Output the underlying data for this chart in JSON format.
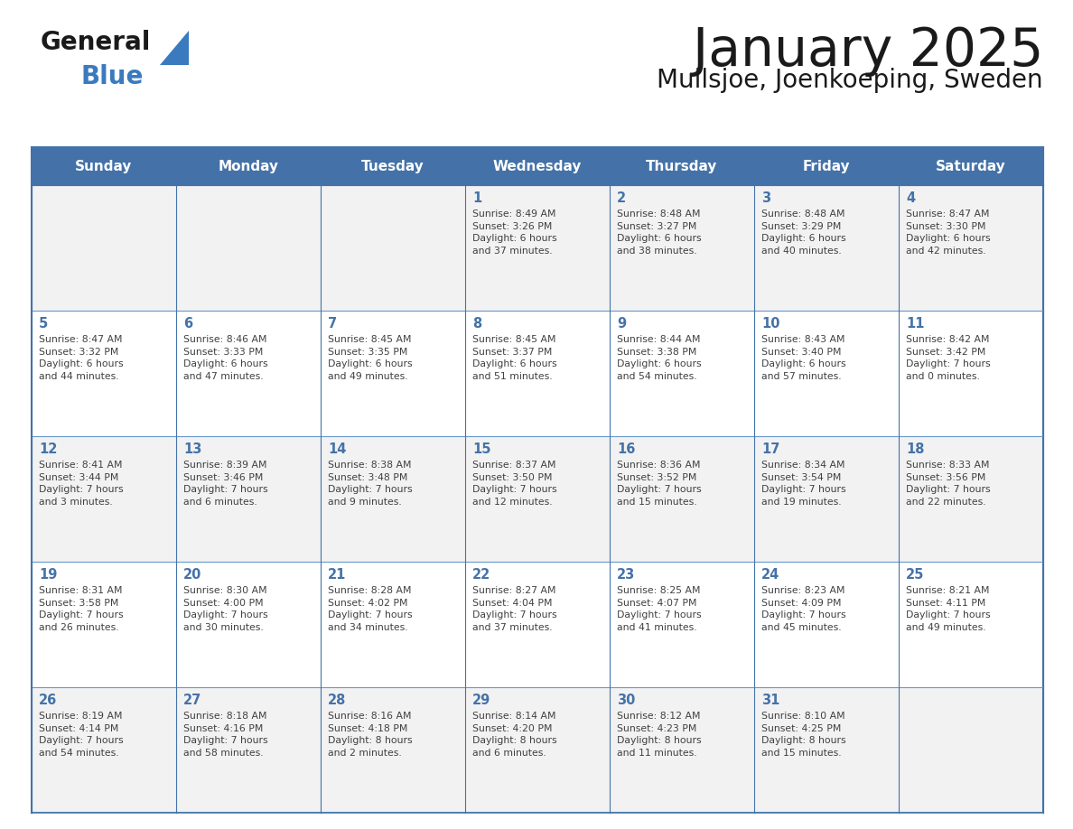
{
  "title": "January 2025",
  "subtitle": "Mullsjoe, Joenkoeping, Sweden",
  "days_of_week": [
    "Sunday",
    "Monday",
    "Tuesday",
    "Wednesday",
    "Thursday",
    "Friday",
    "Saturday"
  ],
  "header_bg": "#4472a8",
  "header_text": "#ffffff",
  "cell_bg_white": "#ffffff",
  "cell_bg_gray": "#f2f2f2",
  "border_color": "#4472a8",
  "row_line_color": "#6699cc",
  "day_number_color": "#4472a8",
  "cell_text_color": "#404040",
  "title_color": "#1a1a1a",
  "subtitle_color": "#1a1a1a",
  "logo_general_color": "#1a1a1a",
  "logo_blue_color": "#3a7bbf",
  "weeks": [
    [
      {
        "day": null,
        "info": ""
      },
      {
        "day": null,
        "info": ""
      },
      {
        "day": null,
        "info": ""
      },
      {
        "day": 1,
        "info": "Sunrise: 8:49 AM\nSunset: 3:26 PM\nDaylight: 6 hours\nand 37 minutes."
      },
      {
        "day": 2,
        "info": "Sunrise: 8:48 AM\nSunset: 3:27 PM\nDaylight: 6 hours\nand 38 minutes."
      },
      {
        "day": 3,
        "info": "Sunrise: 8:48 AM\nSunset: 3:29 PM\nDaylight: 6 hours\nand 40 minutes."
      },
      {
        "day": 4,
        "info": "Sunrise: 8:47 AM\nSunset: 3:30 PM\nDaylight: 6 hours\nand 42 minutes."
      }
    ],
    [
      {
        "day": 5,
        "info": "Sunrise: 8:47 AM\nSunset: 3:32 PM\nDaylight: 6 hours\nand 44 minutes."
      },
      {
        "day": 6,
        "info": "Sunrise: 8:46 AM\nSunset: 3:33 PM\nDaylight: 6 hours\nand 47 minutes."
      },
      {
        "day": 7,
        "info": "Sunrise: 8:45 AM\nSunset: 3:35 PM\nDaylight: 6 hours\nand 49 minutes."
      },
      {
        "day": 8,
        "info": "Sunrise: 8:45 AM\nSunset: 3:37 PM\nDaylight: 6 hours\nand 51 minutes."
      },
      {
        "day": 9,
        "info": "Sunrise: 8:44 AM\nSunset: 3:38 PM\nDaylight: 6 hours\nand 54 minutes."
      },
      {
        "day": 10,
        "info": "Sunrise: 8:43 AM\nSunset: 3:40 PM\nDaylight: 6 hours\nand 57 minutes."
      },
      {
        "day": 11,
        "info": "Sunrise: 8:42 AM\nSunset: 3:42 PM\nDaylight: 7 hours\nand 0 minutes."
      }
    ],
    [
      {
        "day": 12,
        "info": "Sunrise: 8:41 AM\nSunset: 3:44 PM\nDaylight: 7 hours\nand 3 minutes."
      },
      {
        "day": 13,
        "info": "Sunrise: 8:39 AM\nSunset: 3:46 PM\nDaylight: 7 hours\nand 6 minutes."
      },
      {
        "day": 14,
        "info": "Sunrise: 8:38 AM\nSunset: 3:48 PM\nDaylight: 7 hours\nand 9 minutes."
      },
      {
        "day": 15,
        "info": "Sunrise: 8:37 AM\nSunset: 3:50 PM\nDaylight: 7 hours\nand 12 minutes."
      },
      {
        "day": 16,
        "info": "Sunrise: 8:36 AM\nSunset: 3:52 PM\nDaylight: 7 hours\nand 15 minutes."
      },
      {
        "day": 17,
        "info": "Sunrise: 8:34 AM\nSunset: 3:54 PM\nDaylight: 7 hours\nand 19 minutes."
      },
      {
        "day": 18,
        "info": "Sunrise: 8:33 AM\nSunset: 3:56 PM\nDaylight: 7 hours\nand 22 minutes."
      }
    ],
    [
      {
        "day": 19,
        "info": "Sunrise: 8:31 AM\nSunset: 3:58 PM\nDaylight: 7 hours\nand 26 minutes."
      },
      {
        "day": 20,
        "info": "Sunrise: 8:30 AM\nSunset: 4:00 PM\nDaylight: 7 hours\nand 30 minutes."
      },
      {
        "day": 21,
        "info": "Sunrise: 8:28 AM\nSunset: 4:02 PM\nDaylight: 7 hours\nand 34 minutes."
      },
      {
        "day": 22,
        "info": "Sunrise: 8:27 AM\nSunset: 4:04 PM\nDaylight: 7 hours\nand 37 minutes."
      },
      {
        "day": 23,
        "info": "Sunrise: 8:25 AM\nSunset: 4:07 PM\nDaylight: 7 hours\nand 41 minutes."
      },
      {
        "day": 24,
        "info": "Sunrise: 8:23 AM\nSunset: 4:09 PM\nDaylight: 7 hours\nand 45 minutes."
      },
      {
        "day": 25,
        "info": "Sunrise: 8:21 AM\nSunset: 4:11 PM\nDaylight: 7 hours\nand 49 minutes."
      }
    ],
    [
      {
        "day": 26,
        "info": "Sunrise: 8:19 AM\nSunset: 4:14 PM\nDaylight: 7 hours\nand 54 minutes."
      },
      {
        "day": 27,
        "info": "Sunrise: 8:18 AM\nSunset: 4:16 PM\nDaylight: 7 hours\nand 58 minutes."
      },
      {
        "day": 28,
        "info": "Sunrise: 8:16 AM\nSunset: 4:18 PM\nDaylight: 8 hours\nand 2 minutes."
      },
      {
        "day": 29,
        "info": "Sunrise: 8:14 AM\nSunset: 4:20 PM\nDaylight: 8 hours\nand 6 minutes."
      },
      {
        "day": 30,
        "info": "Sunrise: 8:12 AM\nSunset: 4:23 PM\nDaylight: 8 hours\nand 11 minutes."
      },
      {
        "day": 31,
        "info": "Sunrise: 8:10 AM\nSunset: 4:25 PM\nDaylight: 8 hours\nand 15 minutes."
      },
      {
        "day": null,
        "info": ""
      }
    ]
  ]
}
